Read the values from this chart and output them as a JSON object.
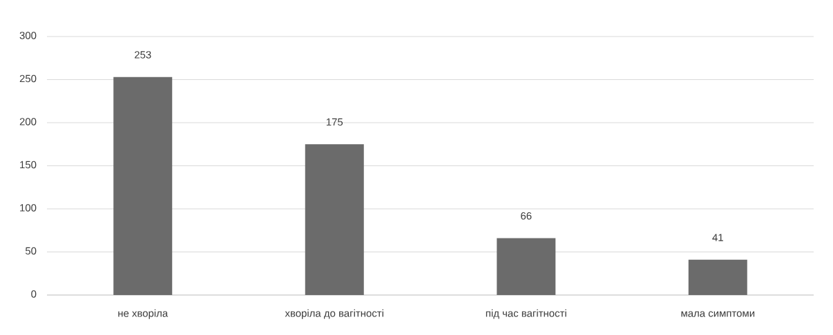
{
  "chart_data": {
    "type": "bar",
    "categories": [
      "не хворіла",
      "хворіла до вагітності",
      "під час вагітності",
      "мала симптоми"
    ],
    "values": [
      253,
      175,
      66,
      41
    ],
    "color": "#6b6b6b",
    "ylim": [
      0,
      300
    ],
    "yticks": [
      0,
      50,
      100,
      150,
      200,
      250,
      300
    ],
    "grid": "y",
    "data_labels": true
  }
}
